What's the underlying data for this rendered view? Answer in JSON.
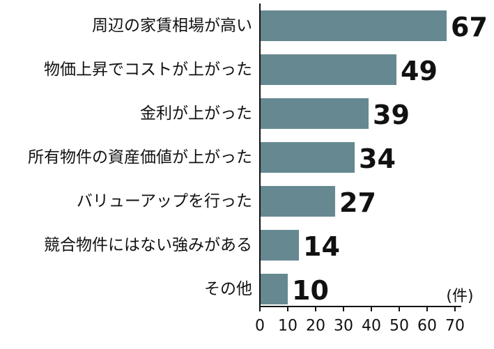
{
  "chart_data": {
    "type": "bar",
    "orientation": "horizontal",
    "categories": [
      "周辺の家賃相場が高い",
      "物価上昇でコストが上がった",
      "金利が上がった",
      "所有物件の資産価値が上がった",
      "バリューアップを行った",
      "競合物件にはない強みがある",
      "その他"
    ],
    "values": [
      67,
      49,
      39,
      34,
      27,
      14,
      10
    ],
    "value_labels": [
      "67",
      "49",
      "39",
      "34",
      "27",
      "14",
      "10"
    ],
    "unit": "(件)",
    "xlim": [
      0,
      70
    ],
    "x_ticks": [
      "0",
      "10",
      "20",
      "30",
      "40",
      "50",
      "60",
      "70"
    ],
    "grid": false,
    "bar_color": "#668891"
  }
}
